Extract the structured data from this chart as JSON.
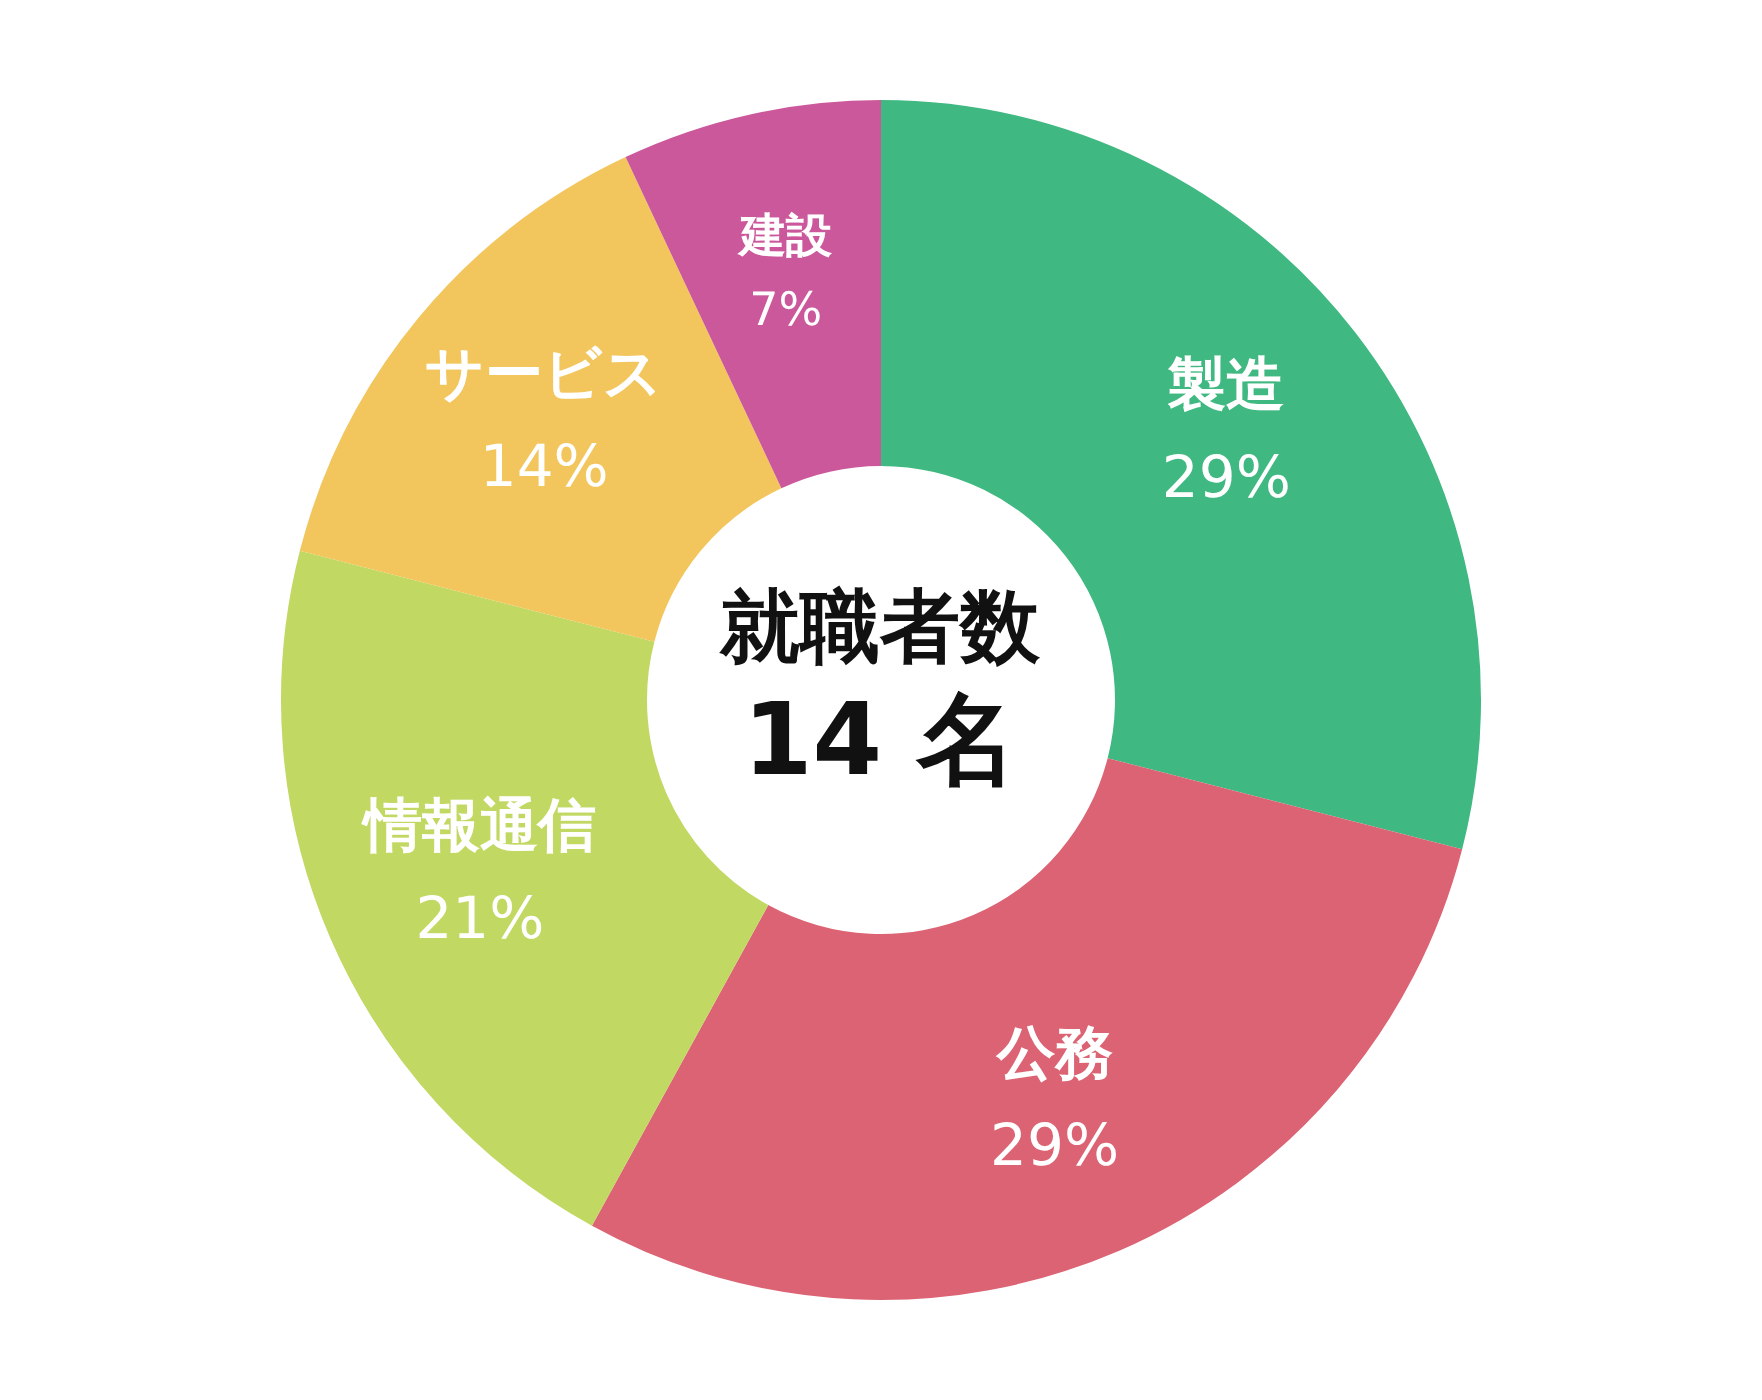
{
  "chart_data": {
    "type": "donut",
    "title": "就職者数",
    "subtitle": "14 名",
    "categories": [
      "製造",
      "公務",
      "情報通信",
      "サービス",
      "建設"
    ],
    "values": [
      29,
      29,
      21,
      14,
      7
    ],
    "colors": [
      "#3fb881",
      "#db6373",
      "#c1d862",
      "#f2c65d",
      "#cc589c"
    ],
    "value_labels": [
      "29%",
      "29%",
      "21%",
      "14%",
      "7%"
    ],
    "legend": false
  }
}
